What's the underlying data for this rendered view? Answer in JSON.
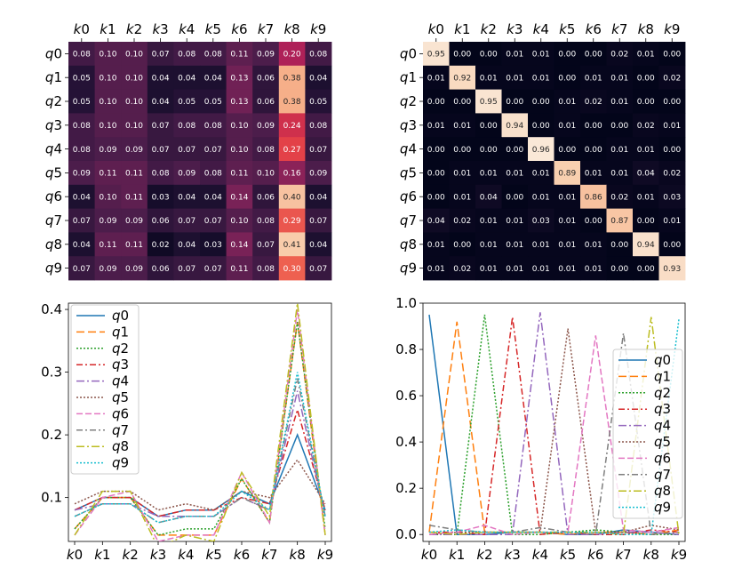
{
  "chart_data": [
    {
      "type": "heatmap",
      "x_labels": [
        "k0",
        "k1",
        "k2",
        "k3",
        "k4",
        "k5",
        "k6",
        "k7",
        "k8",
        "k9"
      ],
      "y_labels": [
        "q0",
        "q1",
        "q2",
        "q3",
        "q4",
        "q5",
        "q6",
        "q7",
        "q8",
        "q9"
      ],
      "values": [
        [
          0.08,
          0.1,
          0.1,
          0.07,
          0.08,
          0.08,
          0.11,
          0.09,
          0.2,
          0.08
        ],
        [
          0.05,
          0.1,
          0.1,
          0.04,
          0.04,
          0.04,
          0.13,
          0.06,
          0.38,
          0.04
        ],
        [
          0.05,
          0.1,
          0.1,
          0.04,
          0.05,
          0.05,
          0.13,
          0.06,
          0.38,
          0.05
        ],
        [
          0.08,
          0.1,
          0.1,
          0.07,
          0.08,
          0.08,
          0.1,
          0.09,
          0.24,
          0.08
        ],
        [
          0.08,
          0.09,
          0.09,
          0.07,
          0.07,
          0.07,
          0.1,
          0.08,
          0.27,
          0.07
        ],
        [
          0.09,
          0.11,
          0.11,
          0.08,
          0.09,
          0.08,
          0.11,
          0.1,
          0.16,
          0.09
        ],
        [
          0.04,
          0.1,
          0.11,
          0.03,
          0.04,
          0.04,
          0.14,
          0.06,
          0.4,
          0.04
        ],
        [
          0.07,
          0.09,
          0.09,
          0.06,
          0.07,
          0.07,
          0.1,
          0.08,
          0.29,
          0.07
        ],
        [
          0.04,
          0.11,
          0.11,
          0.02,
          0.04,
          0.03,
          0.14,
          0.07,
          0.41,
          0.04
        ],
        [
          0.07,
          0.09,
          0.09,
          0.06,
          0.07,
          0.07,
          0.11,
          0.08,
          0.3,
          0.07
        ]
      ],
      "colormap": "rocket",
      "vmin": 0.0,
      "vmax": 0.45
    },
    {
      "type": "heatmap",
      "x_labels": [
        "k0",
        "k1",
        "k2",
        "k3",
        "k4",
        "k5",
        "k6",
        "k7",
        "k8",
        "k9"
      ],
      "y_labels": [
        "q0",
        "q1",
        "q2",
        "q3",
        "q4",
        "q5",
        "q6",
        "q7",
        "q8",
        "q9"
      ],
      "values": [
        [
          0.95,
          0.0,
          0.0,
          0.01,
          0.01,
          0.0,
          0.0,
          0.02,
          0.01,
          0.0
        ],
        [
          0.01,
          0.92,
          0.01,
          0.01,
          0.01,
          0.0,
          0.01,
          0.01,
          0.0,
          0.02
        ],
        [
          0.0,
          0.0,
          0.95,
          0.0,
          0.0,
          0.01,
          0.02,
          0.01,
          0.0,
          0.0
        ],
        [
          0.01,
          0.01,
          0.0,
          0.94,
          0.0,
          0.01,
          0.0,
          0.0,
          0.02,
          0.01
        ],
        [
          0.0,
          0.0,
          0.0,
          0.0,
          0.96,
          0.0,
          0.0,
          0.01,
          0.01,
          0.0
        ],
        [
          0.0,
          0.01,
          0.01,
          0.01,
          0.01,
          0.89,
          0.01,
          0.01,
          0.04,
          0.02
        ],
        [
          0.0,
          0.01,
          0.04,
          0.0,
          0.01,
          0.01,
          0.86,
          0.02,
          0.01,
          0.03
        ],
        [
          0.04,
          0.02,
          0.01,
          0.01,
          0.03,
          0.01,
          0.0,
          0.87,
          0.0,
          0.01
        ],
        [
          0.01,
          0.0,
          0.01,
          0.01,
          0.01,
          0.01,
          0.01,
          0.0,
          0.94,
          0.0
        ],
        [
          0.01,
          0.02,
          0.01,
          0.01,
          0.01,
          0.01,
          0.01,
          0.0,
          0.0,
          0.93
        ]
      ],
      "colormap": "rocket",
      "vmin": 0.0,
      "vmax": 0.97
    },
    {
      "type": "line",
      "x": [
        "k0",
        "k1",
        "k2",
        "k3",
        "k4",
        "k5",
        "k6",
        "k7",
        "k8",
        "k9"
      ],
      "series_source": "rows of heatmap 1",
      "ylim": [
        0.03,
        0.41
      ],
      "yticks": [
        0.1,
        0.2,
        0.3,
        0.4
      ],
      "legend": "upper-left"
    },
    {
      "type": "line",
      "x": [
        "k0",
        "k1",
        "k2",
        "k3",
        "k4",
        "k5",
        "k6",
        "k7",
        "k8",
        "k9"
      ],
      "series_source": "rows of heatmap 2",
      "ylim": [
        -0.03,
        1.0
      ],
      "yticks": [
        0.0,
        0.2,
        0.4,
        0.6,
        0.8,
        1.0
      ],
      "legend": "center-right"
    }
  ],
  "series_names": [
    "q0",
    "q1",
    "q2",
    "q3",
    "q4",
    "q5",
    "q6",
    "q7",
    "q8",
    "q9"
  ],
  "series_colors": [
    "#1f77b4",
    "#ff7f0e",
    "#2ca02c",
    "#d62728",
    "#9467bd",
    "#8c564b",
    "#e377c2",
    "#7f7f7f",
    "#bcbd22",
    "#17becf"
  ],
  "series_dashes": [
    "",
    "9,4",
    "2,2",
    "7,3,2,3",
    "9,3,2,3",
    "2,2",
    "7,3",
    "7,3,2,3",
    "9,3,2,3",
    "2,2"
  ]
}
